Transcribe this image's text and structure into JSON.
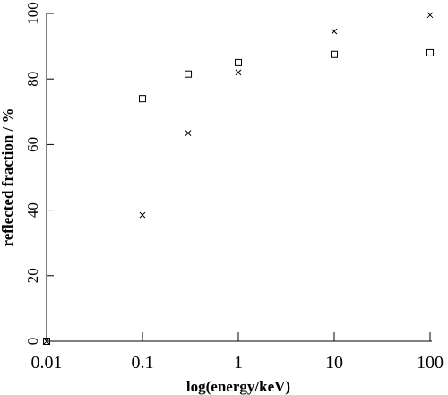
{
  "chart_data": {
    "type": "scatter",
    "x_label": "log(energy/keV)",
    "y_label": "reflected fraction / %",
    "xscale": "log",
    "xlim": [
      0.01,
      100
    ],
    "xticks": [
      0.01,
      0.1,
      1,
      10,
      100
    ],
    "ylim": [
      0,
      100
    ],
    "yticks": [
      0,
      20,
      40,
      60,
      80,
      100
    ],
    "grid": false,
    "series": [
      {
        "marker": "square",
        "color": "#000000",
        "x": [
          0.01,
          0.1,
          0.3,
          1,
          10,
          100
        ],
        "values": [
          0,
          74,
          81.5,
          85,
          87.5,
          88
        ]
      },
      {
        "marker": "x",
        "color": "#000000",
        "x": [
          0.01,
          0.1,
          0.3,
          1,
          10,
          100
        ],
        "values": [
          0,
          38.5,
          63.5,
          82,
          94.5,
          99.5
        ]
      }
    ]
  }
}
